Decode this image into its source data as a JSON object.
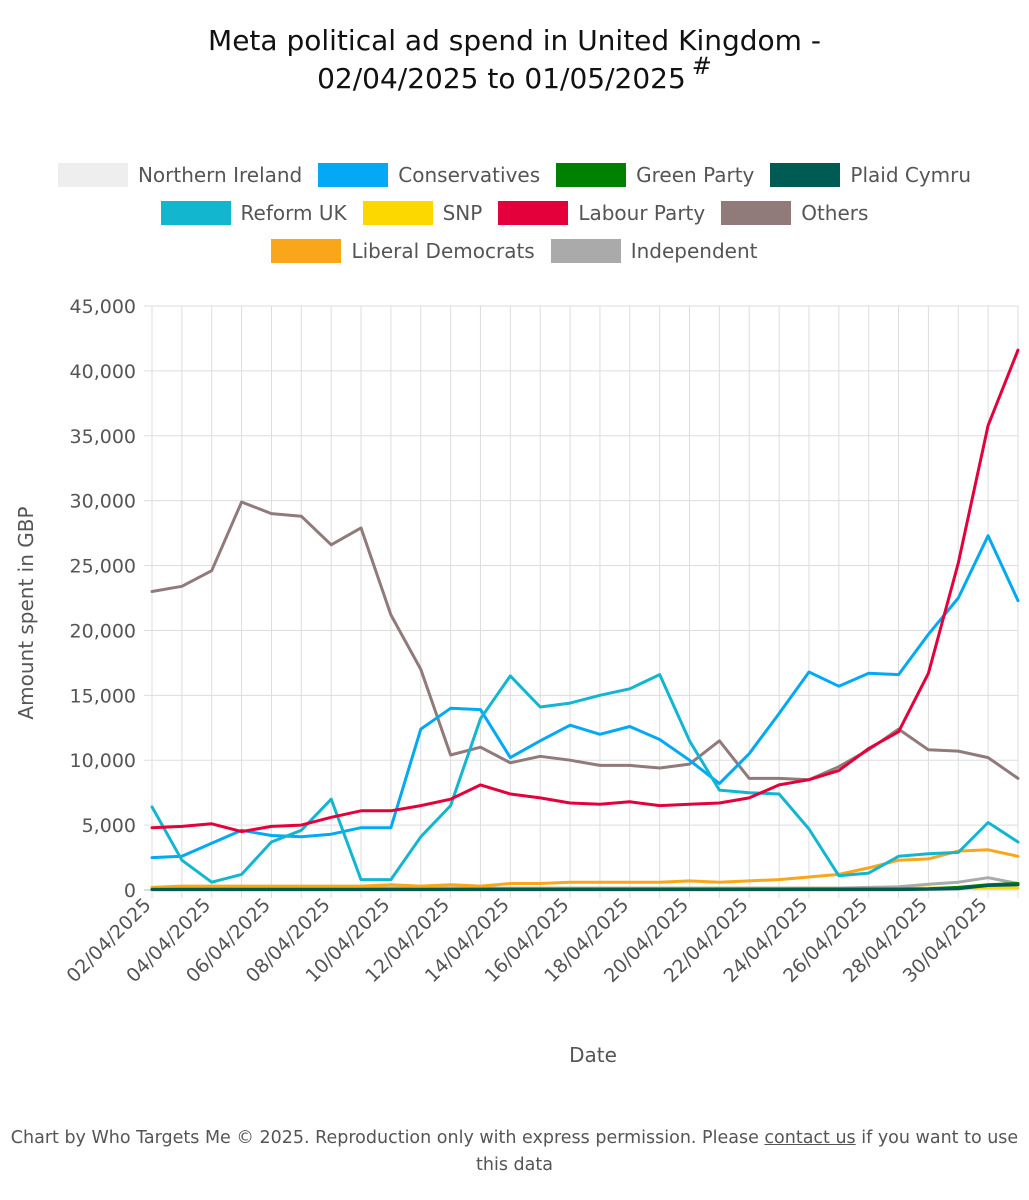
{
  "chart_data": {
    "type": "line",
    "title_line1": "Meta political ad spend in United Kingdom -",
    "title_line2": "02/04/2025 to 01/05/2025",
    "title_mark": "#",
    "xlabel": "Date",
    "ylabel": "Amount spent in GBP",
    "ylim": [
      0,
      45000
    ],
    "yticks": [
      0,
      5000,
      10000,
      15000,
      20000,
      25000,
      30000,
      35000,
      40000,
      45000
    ],
    "ytick_labels": [
      "0",
      "5,000",
      "10,000",
      "15,000",
      "20,000",
      "25,000",
      "30,000",
      "35,000",
      "40,000",
      "45,000"
    ],
    "x": [
      "02/04/2025",
      "03/04/2025",
      "04/04/2025",
      "05/04/2025",
      "06/04/2025",
      "07/04/2025",
      "08/04/2025",
      "09/04/2025",
      "10/04/2025",
      "11/04/2025",
      "12/04/2025",
      "13/04/2025",
      "14/04/2025",
      "15/04/2025",
      "16/04/2025",
      "17/04/2025",
      "18/04/2025",
      "19/04/2025",
      "20/04/2025",
      "21/04/2025",
      "22/04/2025",
      "23/04/2025",
      "24/04/2025",
      "25/04/2025",
      "26/04/2025",
      "27/04/2025",
      "28/04/2025",
      "29/04/2025",
      "30/04/2025",
      "01/05/2025"
    ],
    "xtick_labels": [
      "02/04/2025",
      "04/04/2025",
      "06/04/2025",
      "08/04/2025",
      "10/04/2025",
      "12/04/2025",
      "14/04/2025",
      "16/04/2025",
      "18/04/2025",
      "20/04/2025",
      "22/04/2025",
      "24/04/2025",
      "26/04/2025",
      "28/04/2025",
      "30/04/2025"
    ],
    "grid": true,
    "legend_position": "top",
    "series": [
      {
        "name": "Northern Ireland",
        "color": "#eeeeee",
        "values": [
          10,
          10,
          10,
          10,
          10,
          10,
          10,
          10,
          10,
          10,
          10,
          10,
          10,
          10,
          10,
          10,
          10,
          10,
          10,
          10,
          10,
          10,
          10,
          10,
          10,
          10,
          10,
          10,
          10,
          10
        ]
      },
      {
        "name": "Conservatives",
        "color": "#03a9f4",
        "values": [
          2500,
          2600,
          3600,
          4600,
          4200,
          4100,
          4300,
          4800,
          4800,
          12400,
          14000,
          13900,
          10200,
          11500,
          12700,
          12000,
          12600,
          11600,
          10000,
          8200,
          10500,
          13600,
          16800,
          15700,
          16700,
          16600,
          19700,
          22500,
          27300,
          22300
        ]
      },
      {
        "name": "Green Party",
        "color": "#008000",
        "values": [
          50,
          60,
          60,
          60,
          60,
          60,
          60,
          60,
          60,
          60,
          60,
          70,
          70,
          70,
          70,
          70,
          70,
          70,
          70,
          70,
          70,
          70,
          80,
          80,
          80,
          80,
          100,
          200,
          400,
          500
        ]
      },
      {
        "name": "Plaid Cymru",
        "color": "#005b54",
        "values": [
          30,
          30,
          30,
          30,
          30,
          30,
          30,
          30,
          30,
          30,
          30,
          30,
          30,
          30,
          30,
          30,
          30,
          30,
          30,
          30,
          30,
          30,
          30,
          30,
          30,
          30,
          60,
          100,
          350,
          400
        ]
      },
      {
        "name": "Reform UK",
        "color": "#12b6cf",
        "values": [
          6400,
          2300,
          600,
          1200,
          3700,
          4600,
          7000,
          800,
          800,
          4100,
          6500,
          13200,
          16500,
          14100,
          14400,
          15000,
          15500,
          16600,
          11500,
          7700,
          7500,
          7400,
          4700,
          1100,
          1300,
          2600,
          2800,
          2900,
          5200,
          3700
        ]
      },
      {
        "name": "SNP",
        "color": "#fdd800",
        "values": [
          100,
          150,
          150,
          150,
          150,
          150,
          150,
          150,
          150,
          150,
          150,
          150,
          150,
          150,
          150,
          150,
          150,
          150,
          150,
          150,
          150,
          150,
          150,
          150,
          150,
          150,
          150,
          150,
          150,
          150
        ]
      },
      {
        "name": "Labour Party",
        "color": "#e4003b",
        "values": [
          4800,
          4900,
          5100,
          4500,
          4900,
          5000,
          5600,
          6100,
          6100,
          6500,
          7000,
          8100,
          7400,
          7100,
          6700,
          6600,
          6800,
          6500,
          6600,
          6700,
          7100,
          8100,
          8500,
          9200,
          10900,
          12200,
          16700,
          25200,
          35800,
          41600
        ]
      },
      {
        "name": "Others",
        "color": "#917a7a",
        "values": [
          23000,
          23400,
          24600,
          29900,
          29000,
          28800,
          26600,
          27900,
          21200,
          17000,
          10400,
          11000,
          9800,
          10300,
          10000,
          9600,
          9600,
          9400,
          9700,
          11500,
          8600,
          8600,
          8500,
          9500,
          10800,
          12400,
          10800,
          10700,
          10200,
          8600
        ]
      },
      {
        "name": "Liberal Democrats",
        "color": "#faa61a",
        "values": [
          200,
          300,
          300,
          300,
          300,
          300,
          300,
          300,
          400,
          300,
          400,
          300,
          500,
          500,
          600,
          600,
          600,
          600,
          700,
          600,
          700,
          800,
          1000,
          1200,
          1700,
          2300,
          2400,
          3000,
          3100,
          2600
        ]
      },
      {
        "name": "Independent",
        "color": "#aaaaaa",
        "values": [
          100,
          150,
          150,
          150,
          150,
          150,
          150,
          150,
          150,
          150,
          150,
          150,
          150,
          150,
          150,
          150,
          150,
          150,
          150,
          150,
          150,
          150,
          150,
          150,
          200,
          250,
          450,
          600,
          950,
          500
        ]
      }
    ]
  },
  "footer": {
    "text_before": "Chart by Who Targets Me © 2025. Reproduction only with express permission. Please ",
    "link_text": "contact us",
    "text_after": " if you want to use this data"
  }
}
